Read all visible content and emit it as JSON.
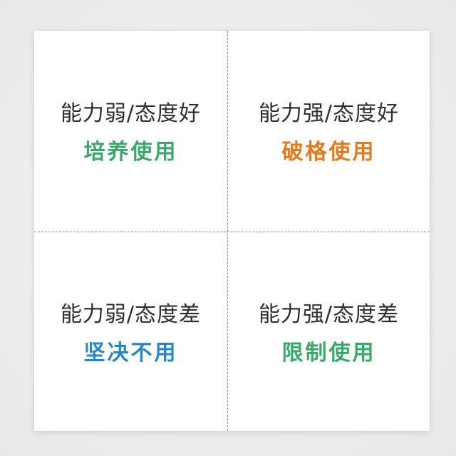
{
  "matrix": {
    "quadrants": [
      {
        "condition": "能力弱/态度好",
        "action": "培养使用",
        "color": "#3aa86b"
      },
      {
        "condition": "能力强/态度好",
        "action": "破格使用",
        "color": "#e07b1e"
      },
      {
        "condition": "能力弱/态度差",
        "action": "坚决不用",
        "color": "#2c86c4"
      },
      {
        "condition": "能力强/态度差",
        "action": "限制使用",
        "color": "#3aa86b"
      }
    ]
  }
}
